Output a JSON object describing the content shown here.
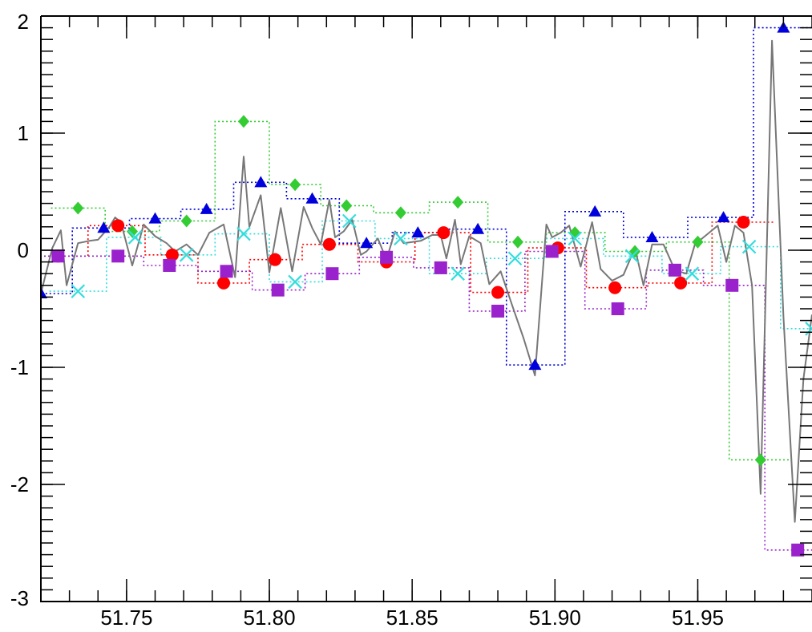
{
  "chart_data": {
    "type": "scatter",
    "xlim": [
      51.72,
      51.99
    ],
    "ylim": [
      -3,
      2
    ],
    "grid": false,
    "x_ticks": [
      {
        "value": 51.75,
        "label": "51.75"
      },
      {
        "value": 51.8,
        "label": "51.80"
      },
      {
        "value": 51.85,
        "label": "51.85"
      },
      {
        "value": 51.9,
        "label": "51.90"
      },
      {
        "value": 51.95,
        "label": "51.95"
      }
    ],
    "y_ticks": [
      {
        "value": 2,
        "label": "2"
      },
      {
        "value": 1,
        "label": "1"
      },
      {
        "value": 0,
        "label": "0"
      },
      {
        "value": -1,
        "label": "-1"
      },
      {
        "value": -2,
        "label": "-2"
      },
      {
        "value": -3,
        "label": "-3"
      }
    ],
    "series": [
      {
        "marker": "triangle",
        "color": "#0000dd",
        "x": [
          51.72,
          51.742,
          51.76,
          51.778,
          51.797,
          51.815,
          51.834,
          51.852,
          51.873,
          51.893,
          51.914,
          51.934,
          51.959,
          51.98
        ],
        "y": [
          -0.37,
          0.19,
          0.27,
          0.35,
          0.58,
          0.44,
          0.06,
          0.15,
          0.18,
          -0.98,
          0.33,
          0.11,
          0.28,
          1.9
        ]
      },
      {
        "marker": "diamond",
        "color": "#33cc33",
        "x": [
          51.733,
          51.752,
          51.771,
          51.791,
          51.809,
          51.827,
          51.846,
          51.866,
          51.887,
          51.907,
          51.928,
          51.95,
          51.972
        ],
        "y": [
          0.36,
          0.16,
          0.25,
          1.1,
          0.56,
          0.38,
          0.32,
          0.41,
          0.07,
          0.15,
          -0.01,
          0.07,
          -1.79
        ]
      },
      {
        "marker": "circle",
        "color": "#ff0000",
        "x": [
          51.726,
          51.747,
          51.766,
          51.784,
          51.802,
          51.821,
          51.841,
          51.861,
          51.88,
          51.901,
          51.921,
          51.944,
          51.966
        ],
        "y": [
          -0.05,
          0.21,
          -0.04,
          -0.28,
          -0.08,
          0.05,
          -0.1,
          0.15,
          -0.36,
          0.02,
          -0.32,
          -0.28,
          0.24
        ]
      },
      {
        "marker": "x",
        "color": "#33dddd",
        "x": [
          51.733,
          51.753,
          51.771,
          51.791,
          51.809,
          51.828,
          51.846,
          51.866,
          51.886,
          51.907,
          51.927,
          51.948,
          51.968,
          51.99
        ],
        "y": [
          -0.35,
          0.11,
          -0.04,
          0.14,
          -0.27,
          0.25,
          0.1,
          -0.2,
          -0.07,
          0.1,
          -0.05,
          -0.2,
          0.03,
          -0.67
        ]
      },
      {
        "marker": "square",
        "color": "#9922cc",
        "x": [
          51.726,
          51.747,
          51.765,
          51.785,
          51.803,
          51.822,
          51.841,
          51.86,
          51.88,
          51.899,
          51.922,
          51.942,
          51.962,
          51.985
        ],
        "y": [
          -0.05,
          -0.05,
          -0.13,
          -0.18,
          -0.34,
          -0.2,
          -0.06,
          -0.15,
          -0.52,
          -0.01,
          -0.5,
          -0.17,
          -0.3,
          -2.56
        ]
      }
    ],
    "line_series": {
      "color": "#777777",
      "x": [
        51.72,
        51.724,
        51.727,
        51.729,
        51.733,
        51.737,
        51.74,
        51.744,
        51.746,
        51.748,
        51.752,
        51.756,
        51.76,
        51.764,
        51.767,
        51.771,
        51.775,
        51.779,
        51.784,
        51.788,
        51.791,
        51.793,
        51.797,
        51.8,
        51.804,
        51.808,
        51.812,
        51.815,
        51.818,
        51.821,
        51.823,
        51.826,
        51.829,
        51.832,
        51.834,
        51.838,
        51.841,
        51.844,
        51.847,
        51.85,
        51.853,
        51.857,
        51.86,
        51.862,
        51.865,
        51.867,
        51.87,
        51.874,
        51.877,
        51.881,
        51.885,
        51.889,
        51.893,
        51.897,
        51.899,
        51.902,
        51.905,
        51.909,
        51.913,
        51.916,
        51.92,
        51.924,
        51.928,
        51.931,
        51.934,
        51.938,
        51.942,
        51.946,
        51.949,
        51.953,
        51.957,
        51.96,
        51.963,
        51.966,
        51.969,
        51.972,
        51.976,
        51.98,
        51.984,
        51.987,
        51.99
      ],
      "y": [
        -0.37,
        0.02,
        0.17,
        -0.3,
        0.06,
        0.08,
        0.09,
        0.2,
        0.28,
        0.24,
        -0.13,
        0.22,
        0.12,
        0.06,
        -0.01,
        0.05,
        -0.04,
        0.15,
        0.22,
        -0.23,
        0.8,
        0.2,
        0.47,
        -0.19,
        0.36,
        -0.18,
        0.37,
        0.19,
        0.05,
        0.43,
        0.11,
        0.16,
        0.26,
        -0.04,
        -0.01,
        0.1,
        -0.08,
        0.16,
        0.06,
        0.07,
        0.08,
        0.13,
        0.13,
        -0.07,
        0.26,
        -0.12,
        0.12,
        0.06,
        -0.29,
        -0.18,
        -0.47,
        -0.75,
        -1.07,
        0.22,
        0.11,
        0.15,
        0.21,
        -0.14,
        0.24,
        -0.16,
        -0.26,
        -0.21,
        0.02,
        -0.3,
        0.05,
        0.05,
        -0.17,
        -0.2,
        0.05,
        0.13,
        0.21,
        -0.1,
        0.21,
        0.15,
        -0.3,
        -2.08,
        1.79,
        -0.57,
        -2.32,
        -1.1,
        -0.55
      ]
    }
  }
}
